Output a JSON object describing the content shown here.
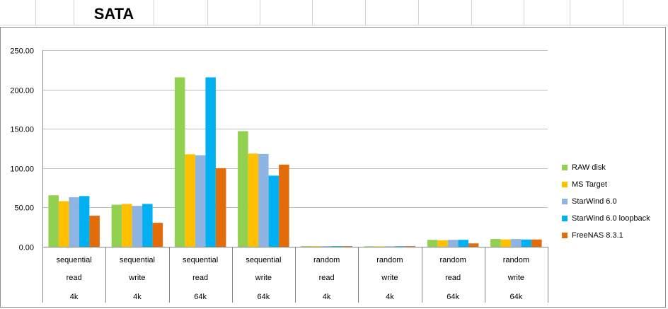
{
  "sheet": {
    "title": "SATA"
  },
  "chart_data": {
    "type": "bar",
    "title": "",
    "xlabel": "",
    "ylabel": "",
    "ylim": [
      0,
      250
    ],
    "yticks": [
      "0.00",
      "50.00",
      "100.00",
      "150.00",
      "200.00",
      "250.00"
    ],
    "grid": true,
    "legend_position": "right",
    "categories": [
      [
        "sequential",
        "read",
        "4k"
      ],
      [
        "sequential",
        "write",
        "4k"
      ],
      [
        "sequential",
        "read",
        "64k"
      ],
      [
        "sequential",
        "write",
        "64k"
      ],
      [
        "random",
        "read",
        "4k"
      ],
      [
        "random",
        "write",
        "4k"
      ],
      [
        "random",
        "read",
        "64k"
      ],
      [
        "random",
        "write",
        "64k"
      ]
    ],
    "series": [
      {
        "name": "RAW disk",
        "color": "#92d050",
        "values": [
          65.5,
          53.5,
          215.5,
          147,
          0.8,
          0.6,
          8.8,
          9.8
        ]
      },
      {
        "name": "MS Target",
        "color": "#ffc000",
        "values": [
          58,
          54.5,
          117.5,
          118.5,
          0.8,
          0.6,
          8.3,
          9.3
        ]
      },
      {
        "name": "StarWind 6.0",
        "color": "#8db4e2",
        "values": [
          63,
          52,
          116.5,
          118,
          0.8,
          0.6,
          8.8,
          9.8
        ]
      },
      {
        "name": "StarWind 6.0 loopback",
        "color": "#00b0f0",
        "values": [
          64.5,
          54.5,
          215.5,
          90.5,
          0.8,
          0.7,
          8.8,
          9.3
        ]
      },
      {
        "name": "FreeNAS 8.3.1",
        "color": "#e26b0a",
        "values": [
          39.5,
          30.5,
          100,
          104.5,
          0.8,
          0.8,
          4.3,
          9.3
        ]
      }
    ]
  }
}
